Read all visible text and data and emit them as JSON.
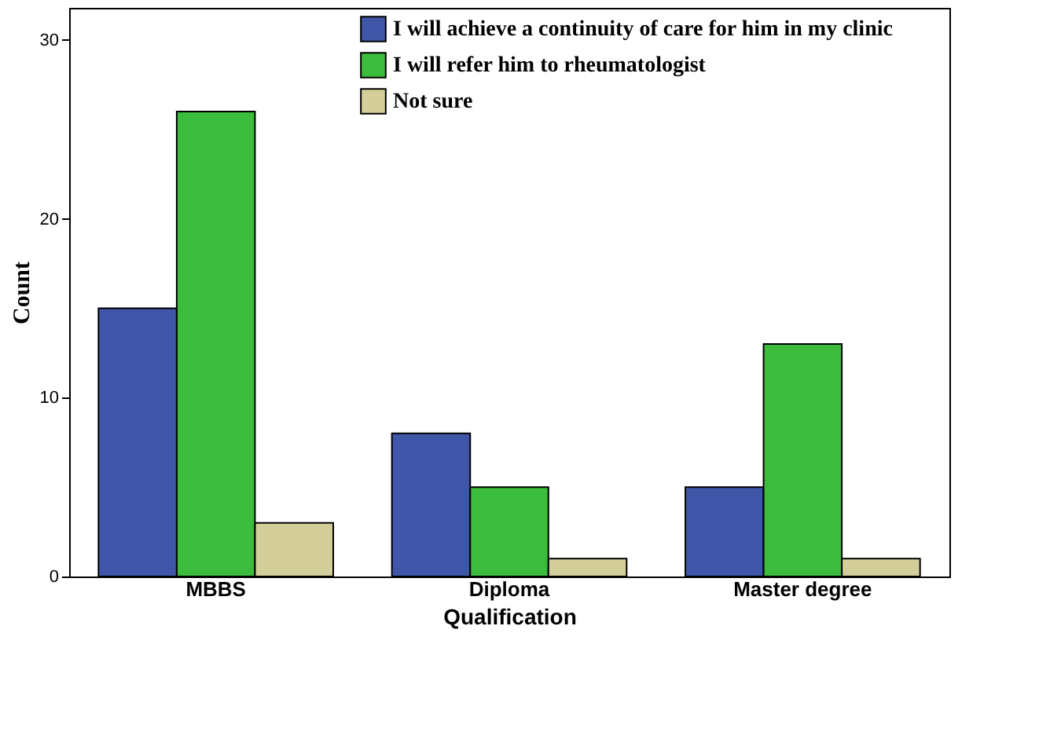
{
  "chart_data": {
    "type": "bar",
    "xlabel": "Qualification",
    "ylabel": "Count",
    "categories": [
      "MBBS",
      "Diploma",
      "Master degree"
    ],
    "series": [
      {
        "name": "I will achieve a continuity of care for him in my clinic",
        "color": "#3f56a8",
        "values": [
          15,
          8,
          5
        ]
      },
      {
        "name": "I will refer him to rheumatologist",
        "color": "#3cbc3c",
        "values": [
          26,
          5,
          13
        ]
      },
      {
        "name": "Not sure",
        "color": "#d4cf9a",
        "values": [
          3,
          1,
          1
        ]
      }
    ],
    "ylim": [
      0,
      31.8
    ],
    "yticks": [
      0,
      10,
      20,
      30
    ],
    "grid": false,
    "legend": "top right"
  }
}
